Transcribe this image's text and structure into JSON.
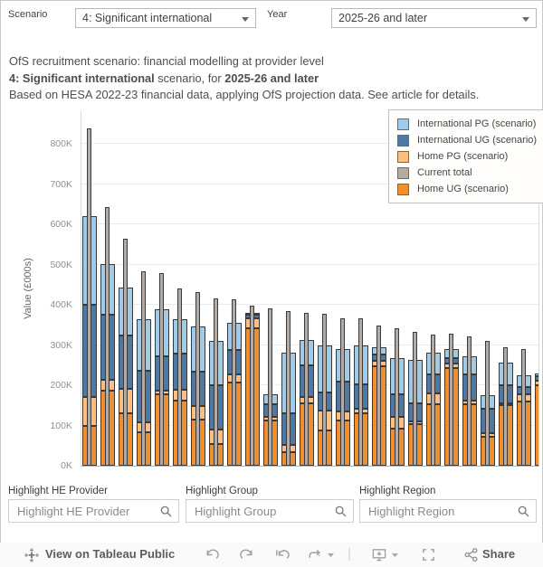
{
  "filters": {
    "scenario": {
      "label": "Scenario",
      "value": "4: Significant international"
    },
    "year": {
      "label": "Year",
      "value": "2025-26 and later"
    }
  },
  "title": {
    "line1": "OfS recruitment scenario: financial modelling at provider level",
    "line2_bold1": "4: Significant international",
    "line2_mid": " scenario, for ",
    "line2_bold2": "2025-26 and later",
    "line3": "Based on HESA 2022-23 financial data, applying OfS projection data. See article for details."
  },
  "chart_data": {
    "type": "bar",
    "stacked": true,
    "ylabel": "Value (£000s)",
    "ylim": [
      0,
      882
    ],
    "units": "£ thousands",
    "grid": true,
    "legend_position": "top-right overlay",
    "y_ticks": [
      "0K",
      "100K",
      "200K",
      "300K",
      "400K",
      "500K",
      "600K",
      "700K",
      "800K"
    ],
    "categories_note": "26 provider bars, unlabeled on x-axis, sorted by current total descending; last bar clipped by plot edge",
    "legend": [
      {
        "label": "International PG (scenario)",
        "color": "#a0cbe8"
      },
      {
        "label": "International UG (scenario)",
        "color": "#4e79a7"
      },
      {
        "label": "Home PG (scenario)",
        "color": "#ffbe7d"
      },
      {
        "label": "Current total",
        "color": "#b4aba5"
      },
      {
        "label": "Home UG (scenario)",
        "color": "#f28e2b"
      }
    ],
    "series": [
      {
        "name": "Home UG (scenario)",
        "color": "#f28e2b",
        "values": [
          100,
          187,
          130,
          83,
          178,
          161,
          115,
          55,
          208,
          343,
          112,
          34,
          156,
          88,
          112,
          130,
          247,
          92,
          104,
          152,
          244,
          152,
          72,
          150,
          160,
          201
        ]
      },
      {
        "name": "Home PG (scenario)",
        "color": "#ffbe7d",
        "values": [
          72,
          27,
          62,
          25,
          9,
          29,
          33,
          36,
          19,
          24,
          10,
          18,
          15,
          49,
          23,
          12,
          14,
          30,
          6,
          28,
          11,
          9,
          9,
          6,
          17,
          11
        ]
      },
      {
        "name": "International UG (scenario)",
        "color": "#4e79a7",
        "values": [
          228,
          161,
          131,
          128,
          85,
          88,
          87,
          110,
          60,
          9,
          30,
          79,
          79,
          45,
          75,
          60,
          16,
          55,
          46,
          47,
          13,
          66,
          60,
          45,
          18,
          10
        ]
      },
      {
        "name": "International PG (scenario)",
        "color": "#a0cbe8",
        "values": [
          222,
          127,
          120,
          128,
          117,
          86,
          112,
          110,
          68,
          4,
          26,
          150,
          63,
          118,
          81,
          98,
          18,
          91,
          107,
          54,
          22,
          45,
          34,
          56,
          30,
          7
        ]
      }
    ],
    "overlay_series": {
      "name": "Current total",
      "color": "#b4aba5",
      "values": [
        840,
        643,
        565,
        484,
        480,
        441,
        432,
        417,
        413,
        398,
        392,
        385,
        381,
        379,
        367,
        366,
        349,
        341,
        334,
        327,
        328,
        322,
        311,
        295,
        291,
        232
      ]
    }
  },
  "highlights": {
    "provider": {
      "label": "Highlight HE Provider",
      "placeholder": "Highlight HE Provider"
    },
    "group": {
      "label": "Highlight Group",
      "placeholder": "Highlight Group"
    },
    "region": {
      "label": "Highlight Region",
      "placeholder": "Highlight Region"
    }
  },
  "toolbar": {
    "view_on_label": "View on Tableau Public",
    "share_label": "Share",
    "icons": [
      "tableau-logo",
      "undo",
      "redo",
      "revert",
      "refresh",
      "download",
      "fullscreen",
      "share"
    ]
  }
}
